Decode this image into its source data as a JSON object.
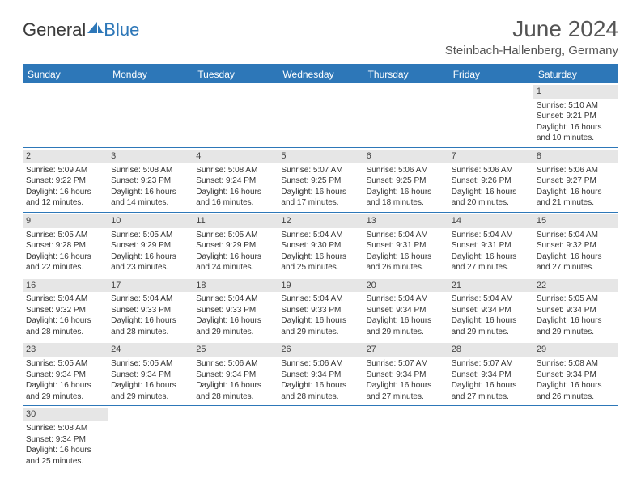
{
  "header": {
    "logo_text1": "General",
    "logo_text2": "Blue",
    "title": "June 2024",
    "location": "Steinbach-Hallenberg, Germany",
    "logo_color_dark": "#3a3a3a",
    "logo_color_blue": "#2d77b8"
  },
  "calendar": {
    "header_bg": "#2d77b8",
    "header_text_color": "#ffffff",
    "daynum_bg": "#e6e6e6",
    "border_color": "#2d77b8",
    "weekdays": [
      "Sunday",
      "Monday",
      "Tuesday",
      "Wednesday",
      "Thursday",
      "Friday",
      "Saturday"
    ],
    "weeks": [
      [
        {
          "blank": true
        },
        {
          "blank": true
        },
        {
          "blank": true
        },
        {
          "blank": true
        },
        {
          "blank": true
        },
        {
          "blank": true
        },
        {
          "num": "1",
          "sunrise": "Sunrise: 5:10 AM",
          "sunset": "Sunset: 9:21 PM",
          "daylight1": "Daylight: 16 hours",
          "daylight2": "and 10 minutes."
        }
      ],
      [
        {
          "num": "2",
          "sunrise": "Sunrise: 5:09 AM",
          "sunset": "Sunset: 9:22 PM",
          "daylight1": "Daylight: 16 hours",
          "daylight2": "and 12 minutes."
        },
        {
          "num": "3",
          "sunrise": "Sunrise: 5:08 AM",
          "sunset": "Sunset: 9:23 PM",
          "daylight1": "Daylight: 16 hours",
          "daylight2": "and 14 minutes."
        },
        {
          "num": "4",
          "sunrise": "Sunrise: 5:08 AM",
          "sunset": "Sunset: 9:24 PM",
          "daylight1": "Daylight: 16 hours",
          "daylight2": "and 16 minutes."
        },
        {
          "num": "5",
          "sunrise": "Sunrise: 5:07 AM",
          "sunset": "Sunset: 9:25 PM",
          "daylight1": "Daylight: 16 hours",
          "daylight2": "and 17 minutes."
        },
        {
          "num": "6",
          "sunrise": "Sunrise: 5:06 AM",
          "sunset": "Sunset: 9:25 PM",
          "daylight1": "Daylight: 16 hours",
          "daylight2": "and 18 minutes."
        },
        {
          "num": "7",
          "sunrise": "Sunrise: 5:06 AM",
          "sunset": "Sunset: 9:26 PM",
          "daylight1": "Daylight: 16 hours",
          "daylight2": "and 20 minutes."
        },
        {
          "num": "8",
          "sunrise": "Sunrise: 5:06 AM",
          "sunset": "Sunset: 9:27 PM",
          "daylight1": "Daylight: 16 hours",
          "daylight2": "and 21 minutes."
        }
      ],
      [
        {
          "num": "9",
          "sunrise": "Sunrise: 5:05 AM",
          "sunset": "Sunset: 9:28 PM",
          "daylight1": "Daylight: 16 hours",
          "daylight2": "and 22 minutes."
        },
        {
          "num": "10",
          "sunrise": "Sunrise: 5:05 AM",
          "sunset": "Sunset: 9:29 PM",
          "daylight1": "Daylight: 16 hours",
          "daylight2": "and 23 minutes."
        },
        {
          "num": "11",
          "sunrise": "Sunrise: 5:05 AM",
          "sunset": "Sunset: 9:29 PM",
          "daylight1": "Daylight: 16 hours",
          "daylight2": "and 24 minutes."
        },
        {
          "num": "12",
          "sunrise": "Sunrise: 5:04 AM",
          "sunset": "Sunset: 9:30 PM",
          "daylight1": "Daylight: 16 hours",
          "daylight2": "and 25 minutes."
        },
        {
          "num": "13",
          "sunrise": "Sunrise: 5:04 AM",
          "sunset": "Sunset: 9:31 PM",
          "daylight1": "Daylight: 16 hours",
          "daylight2": "and 26 minutes."
        },
        {
          "num": "14",
          "sunrise": "Sunrise: 5:04 AM",
          "sunset": "Sunset: 9:31 PM",
          "daylight1": "Daylight: 16 hours",
          "daylight2": "and 27 minutes."
        },
        {
          "num": "15",
          "sunrise": "Sunrise: 5:04 AM",
          "sunset": "Sunset: 9:32 PM",
          "daylight1": "Daylight: 16 hours",
          "daylight2": "and 27 minutes."
        }
      ],
      [
        {
          "num": "16",
          "sunrise": "Sunrise: 5:04 AM",
          "sunset": "Sunset: 9:32 PM",
          "daylight1": "Daylight: 16 hours",
          "daylight2": "and 28 minutes."
        },
        {
          "num": "17",
          "sunrise": "Sunrise: 5:04 AM",
          "sunset": "Sunset: 9:33 PM",
          "daylight1": "Daylight: 16 hours",
          "daylight2": "and 28 minutes."
        },
        {
          "num": "18",
          "sunrise": "Sunrise: 5:04 AM",
          "sunset": "Sunset: 9:33 PM",
          "daylight1": "Daylight: 16 hours",
          "daylight2": "and 29 minutes."
        },
        {
          "num": "19",
          "sunrise": "Sunrise: 5:04 AM",
          "sunset": "Sunset: 9:33 PM",
          "daylight1": "Daylight: 16 hours",
          "daylight2": "and 29 minutes."
        },
        {
          "num": "20",
          "sunrise": "Sunrise: 5:04 AM",
          "sunset": "Sunset: 9:34 PM",
          "daylight1": "Daylight: 16 hours",
          "daylight2": "and 29 minutes."
        },
        {
          "num": "21",
          "sunrise": "Sunrise: 5:04 AM",
          "sunset": "Sunset: 9:34 PM",
          "daylight1": "Daylight: 16 hours",
          "daylight2": "and 29 minutes."
        },
        {
          "num": "22",
          "sunrise": "Sunrise: 5:05 AM",
          "sunset": "Sunset: 9:34 PM",
          "daylight1": "Daylight: 16 hours",
          "daylight2": "and 29 minutes."
        }
      ],
      [
        {
          "num": "23",
          "sunrise": "Sunrise: 5:05 AM",
          "sunset": "Sunset: 9:34 PM",
          "daylight1": "Daylight: 16 hours",
          "daylight2": "and 29 minutes."
        },
        {
          "num": "24",
          "sunrise": "Sunrise: 5:05 AM",
          "sunset": "Sunset: 9:34 PM",
          "daylight1": "Daylight: 16 hours",
          "daylight2": "and 29 minutes."
        },
        {
          "num": "25",
          "sunrise": "Sunrise: 5:06 AM",
          "sunset": "Sunset: 9:34 PM",
          "daylight1": "Daylight: 16 hours",
          "daylight2": "and 28 minutes."
        },
        {
          "num": "26",
          "sunrise": "Sunrise: 5:06 AM",
          "sunset": "Sunset: 9:34 PM",
          "daylight1": "Daylight: 16 hours",
          "daylight2": "and 28 minutes."
        },
        {
          "num": "27",
          "sunrise": "Sunrise: 5:07 AM",
          "sunset": "Sunset: 9:34 PM",
          "daylight1": "Daylight: 16 hours",
          "daylight2": "and 27 minutes."
        },
        {
          "num": "28",
          "sunrise": "Sunrise: 5:07 AM",
          "sunset": "Sunset: 9:34 PM",
          "daylight1": "Daylight: 16 hours",
          "daylight2": "and 27 minutes."
        },
        {
          "num": "29",
          "sunrise": "Sunrise: 5:08 AM",
          "sunset": "Sunset: 9:34 PM",
          "daylight1": "Daylight: 16 hours",
          "daylight2": "and 26 minutes."
        }
      ],
      [
        {
          "num": "30",
          "sunrise": "Sunrise: 5:08 AM",
          "sunset": "Sunset: 9:34 PM",
          "daylight1": "Daylight: 16 hours",
          "daylight2": "and 25 minutes."
        },
        {
          "blank": true
        },
        {
          "blank": true
        },
        {
          "blank": true
        },
        {
          "blank": true
        },
        {
          "blank": true
        },
        {
          "blank": true
        }
      ]
    ]
  }
}
